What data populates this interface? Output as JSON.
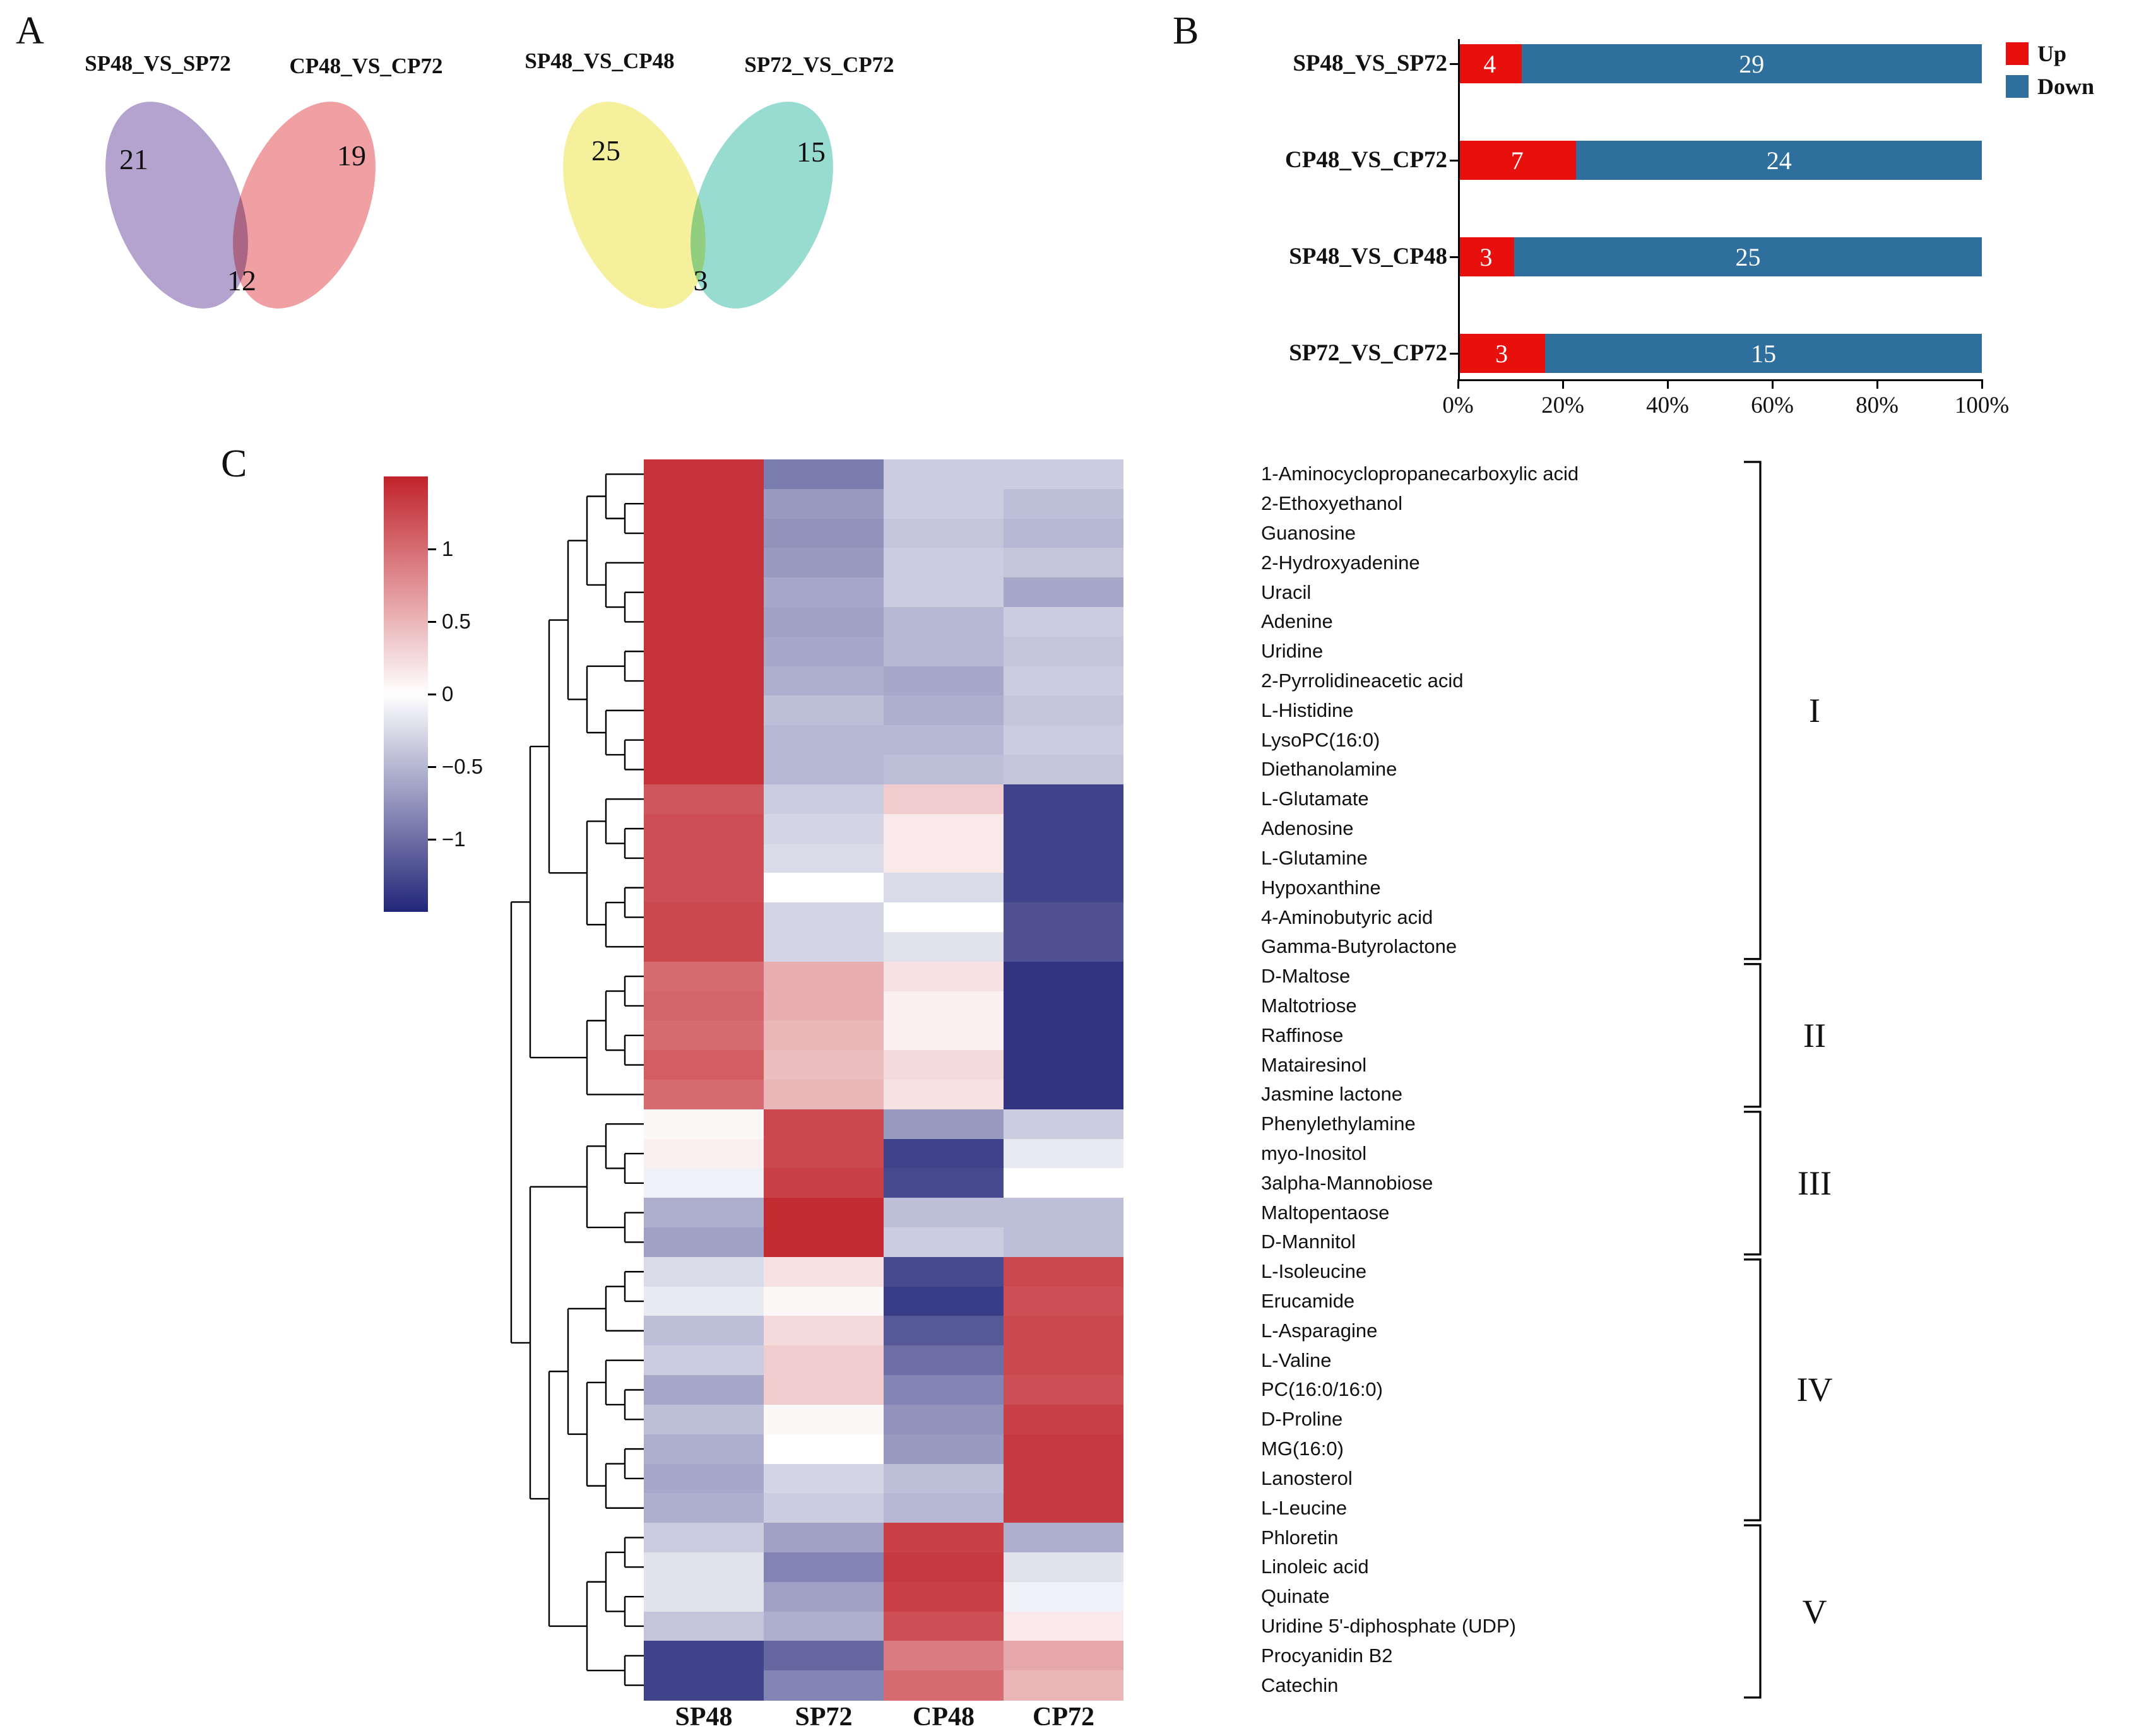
{
  "figure": {
    "background": "#ffffff"
  },
  "chart_data": [
    {
      "type": "venn",
      "panel": "A",
      "diagrams": [
        {
          "sets": [
            {
              "label": "SP48_VS_SP72",
              "unique": 21,
              "color": "#b5a3cf"
            },
            {
              "label": "CP48_VS_CP72",
              "unique": 19,
              "color": "#f09fa3"
            }
          ],
          "overlap": 12
        },
        {
          "sets": [
            {
              "label": "SP48_VS_CP48",
              "unique": 25,
              "color": "#f5f09c"
            },
            {
              "label": "SP72_VS_CP72",
              "unique": 15,
              "color": "#98dbd0"
            }
          ],
          "overlap": 3
        }
      ]
    },
    {
      "type": "bar",
      "panel": "B",
      "orientation": "horizontal-stacked-100pct",
      "categories": [
        "SP48_VS_SP72",
        "CP48_VS_CP72",
        "SP48_VS_CP48",
        "SP72_VS_CP72"
      ],
      "series": [
        {
          "name": "Up",
          "color": "#e8100c",
          "values": [
            4,
            7,
            3,
            3
          ]
        },
        {
          "name": "Down",
          "color": "#2f6f9e",
          "values": [
            29,
            24,
            25,
            15
          ]
        }
      ],
      "x_ticks": [
        "0%",
        "20%",
        "40%",
        "60%",
        "80%",
        "100%"
      ],
      "xlim": [
        0,
        100
      ],
      "legend_position": "right"
    },
    {
      "type": "heatmap",
      "panel": "C",
      "columns": [
        "SP48",
        "SP72",
        "CP48",
        "CP72"
      ],
      "colorbar": {
        "ticks": [
          1,
          0.5,
          0,
          -0.5,
          -1
        ],
        "vmax": 1.5,
        "vmin": -1.5,
        "max_color": "#c1232b",
        "mid_color": "#ffffff",
        "min_color": "#232678"
      },
      "groups": [
        {
          "numeral": "I",
          "start_row": 0,
          "end_row": 16
        },
        {
          "numeral": "II",
          "start_row": 17,
          "end_row": 21
        },
        {
          "numeral": "III",
          "start_row": 22,
          "end_row": 26
        },
        {
          "numeral": "IV",
          "start_row": 27,
          "end_row": 35
        },
        {
          "numeral": "V",
          "start_row": 36,
          "end_row": 41
        }
      ],
      "rows": [
        {
          "name": "1-Aminocyclopropanecarboxylic acid",
          "values": [
            1.4,
            -0.9,
            -0.35,
            -0.35
          ]
        },
        {
          "name": "2-Ethoxyethanol",
          "values": [
            1.4,
            -0.7,
            -0.35,
            -0.45
          ]
        },
        {
          "name": "Guanosine",
          "values": [
            1.4,
            -0.75,
            -0.4,
            -0.5
          ]
        },
        {
          "name": "2-Hydroxyadenine",
          "values": [
            1.4,
            -0.7,
            -0.35,
            -0.4
          ]
        },
        {
          "name": "Uracil",
          "values": [
            1.4,
            -0.6,
            -0.35,
            -0.6
          ]
        },
        {
          "name": "Adenine",
          "values": [
            1.4,
            -0.65,
            -0.5,
            -0.35
          ]
        },
        {
          "name": "Uridine",
          "values": [
            1.4,
            -0.6,
            -0.5,
            -0.4
          ]
        },
        {
          "name": "2-Pyrrolidineacetic acid",
          "values": [
            1.4,
            -0.55,
            -0.6,
            -0.35
          ]
        },
        {
          "name": "L-Histidine",
          "values": [
            1.4,
            -0.45,
            -0.55,
            -0.4
          ]
        },
        {
          "name": "LysoPC(16:0)",
          "values": [
            1.4,
            -0.5,
            -0.5,
            -0.35
          ]
        },
        {
          "name": "Diethanolamine",
          "values": [
            1.4,
            -0.5,
            -0.45,
            -0.4
          ]
        },
        {
          "name": "L-Glutamate",
          "values": [
            1.15,
            -0.35,
            0.35,
            -1.3
          ]
        },
        {
          "name": "Adenosine",
          "values": [
            1.2,
            -0.3,
            0.15,
            -1.3
          ]
        },
        {
          "name": "L-Glutamine",
          "values": [
            1.2,
            -0.25,
            0.15,
            -1.3
          ]
        },
        {
          "name": "Hypoxanthine",
          "values": [
            1.2,
            0.0,
            -0.25,
            -1.3
          ]
        },
        {
          "name": "4-Aminobutyric acid",
          "values": [
            1.25,
            -0.3,
            0.0,
            -1.2
          ]
        },
        {
          "name": "Gamma-Butyrolactone",
          "values": [
            1.25,
            -0.3,
            -0.2,
            -1.2
          ]
        },
        {
          "name": "D-Maltose",
          "values": [
            1.0,
            0.55,
            0.2,
            -1.4
          ]
        },
        {
          "name": "Maltotriose",
          "values": [
            1.05,
            0.55,
            0.1,
            -1.4
          ]
        },
        {
          "name": "Raffinose",
          "values": [
            1.0,
            0.5,
            0.1,
            -1.4
          ]
        },
        {
          "name": "Matairesinol",
          "values": [
            1.1,
            0.45,
            0.25,
            -1.4
          ]
        },
        {
          "name": "Jasmine lactone",
          "values": [
            1.0,
            0.5,
            0.2,
            -1.4
          ]
        },
        {
          "name": "Phenylethylamine",
          "values": [
            0.05,
            1.25,
            -0.7,
            -0.35
          ]
        },
        {
          "name": "myo-Inositol",
          "values": [
            0.1,
            1.25,
            -1.3,
            -0.15
          ]
        },
        {
          "name": "3alpha-Mannobiose",
          "values": [
            -0.1,
            1.3,
            -1.25,
            0.0
          ]
        },
        {
          "name": "Maltopentaose",
          "values": [
            -0.55,
            1.45,
            -0.45,
            -0.45
          ]
        },
        {
          "name": "D-Mannitol",
          "values": [
            -0.65,
            1.45,
            -0.35,
            -0.45
          ]
        },
        {
          "name": "L-Isoleucine",
          "values": [
            -0.25,
            0.2,
            -1.25,
            1.25
          ]
        },
        {
          "name": "Erucamide",
          "values": [
            -0.15,
            0.05,
            -1.35,
            1.2
          ]
        },
        {
          "name": "L-Asparagine",
          "values": [
            -0.45,
            0.25,
            -1.15,
            1.25
          ]
        },
        {
          "name": "L-Valine",
          "values": [
            -0.35,
            0.35,
            -1.0,
            1.25
          ]
        },
        {
          "name": "PC(16:0/16:0)",
          "values": [
            -0.6,
            0.35,
            -0.85,
            1.2
          ]
        },
        {
          "name": "D-Proline",
          "values": [
            -0.45,
            0.05,
            -0.75,
            1.3
          ]
        },
        {
          "name": "MG(16:0)",
          "values": [
            -0.55,
            0.0,
            -0.7,
            1.35
          ]
        },
        {
          "name": "Lanosterol",
          "values": [
            -0.6,
            -0.3,
            -0.45,
            1.35
          ]
        },
        {
          "name": "L-Leucine",
          "values": [
            -0.55,
            -0.35,
            -0.5,
            1.35
          ]
        },
        {
          "name": "Phloretin",
          "values": [
            -0.35,
            -0.65,
            1.3,
            -0.55
          ]
        },
        {
          "name": "Linoleic acid",
          "values": [
            -0.2,
            -0.85,
            1.35,
            -0.2
          ]
        },
        {
          "name": "Quinate",
          "values": [
            -0.2,
            -0.65,
            1.3,
            -0.1
          ]
        },
        {
          "name": "Uridine 5'-diphosphate (UDP)",
          "values": [
            -0.4,
            -0.55,
            1.2,
            0.15
          ]
        },
        {
          "name": "Procyanidin B2",
          "values": [
            -1.3,
            -1.05,
            0.9,
            0.6
          ]
        },
        {
          "name": "Catechin",
          "values": [
            -1.3,
            -0.85,
            1.0,
            0.5
          ]
        }
      ],
      "dendrogram": [
        [
          [
            [
              [
                [
                  0,
                  [
                    1,
                    2
                  ]
                ],
                [
                  3,
                  [
                    4,
                    5
                  ]
                ]
              ],
              [
                [
                  6,
                  7
                ],
                [
                  8,
                  [
                    9,
                    10
                  ]
                ]
              ]
            ],
            [
              [
                11,
                [
                  12,
                  13
                ]
              ],
              [
                [
                  14,
                  15
                ],
                16
              ]
            ]
          ],
          [
            [
              [
                17,
                18
              ],
              [
                19,
                20
              ]
            ],
            21
          ]
        ],
        [
          [
            [
              22,
              [
                23,
                24
              ]
            ],
            [
              25,
              26
            ]
          ],
          [
            [
              [
                [
                  27,
                  28
                ],
                29
              ],
              [
                [
                  30,
                  [
                    31,
                    32
                  ]
                ],
                [
                  [
                    33,
                    34
                  ],
                  35
                ]
              ]
            ],
            [
              [
                [
                  36,
                  37
                ],
                [
                  38,
                  39
                ]
              ],
              [
                40,
                41
              ]
            ]
          ]
        ]
      ]
    }
  ]
}
